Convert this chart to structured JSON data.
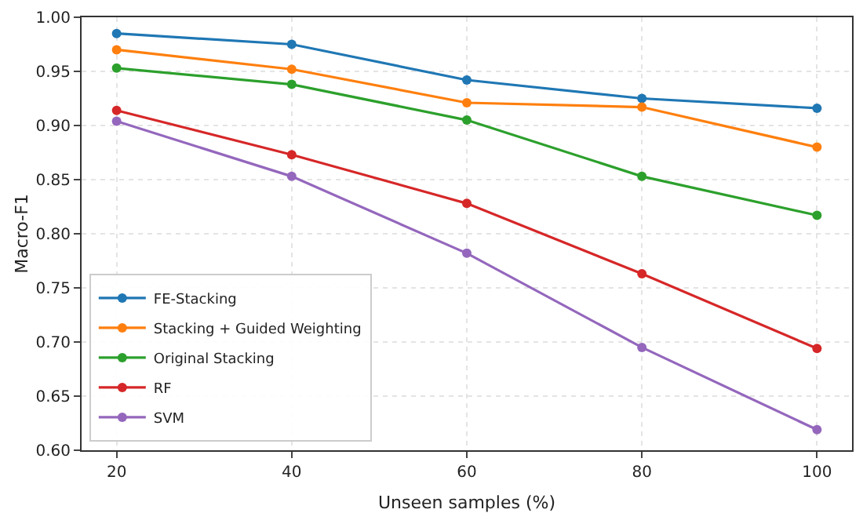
{
  "chart_data": {
    "type": "line",
    "xlabel": "Unseen samples (%)",
    "ylabel": "Macro-F1",
    "x": [
      20,
      40,
      60,
      80,
      100
    ],
    "series": [
      {
        "name": "FE-Stacking",
        "color": "#1f77b4",
        "values": [
          0.985,
          0.975,
          0.942,
          0.925,
          0.916
        ]
      },
      {
        "name": "Stacking + Guided Weighting",
        "color": "#ff7f0e",
        "values": [
          0.97,
          0.952,
          0.921,
          0.917,
          0.88
        ]
      },
      {
        "name": "Original Stacking",
        "color": "#2ca02c",
        "values": [
          0.953,
          0.938,
          0.905,
          0.853,
          0.817
        ]
      },
      {
        "name": "RF",
        "color": "#d62728",
        "values": [
          0.914,
          0.873,
          0.828,
          0.763,
          0.694
        ]
      },
      {
        "name": "SVM",
        "color": "#9467bd",
        "values": [
          0.904,
          0.853,
          0.782,
          0.695,
          0.619
        ]
      }
    ],
    "xlim": [
      16,
      104
    ],
    "xticks": [
      20,
      40,
      60,
      80,
      100
    ],
    "ylim": [
      0.6,
      1.0
    ],
    "yticks": [
      {
        "value": 0.6,
        "label": "0.60"
      },
      {
        "value": 0.65,
        "label": "0.65"
      },
      {
        "value": 0.7,
        "label": "0.70"
      },
      {
        "value": 0.75,
        "label": "0.75"
      },
      {
        "value": 0.8,
        "label": "0.80"
      },
      {
        "value": 0.85,
        "label": "0.85"
      },
      {
        "value": 0.9,
        "label": "0.90"
      },
      {
        "value": 0.95,
        "label": "0.95"
      },
      {
        "value": 1.0,
        "label": "1.00"
      }
    ],
    "grid": true,
    "legend": "bottom left",
    "marker": "circle",
    "line_style": "solid"
  }
}
